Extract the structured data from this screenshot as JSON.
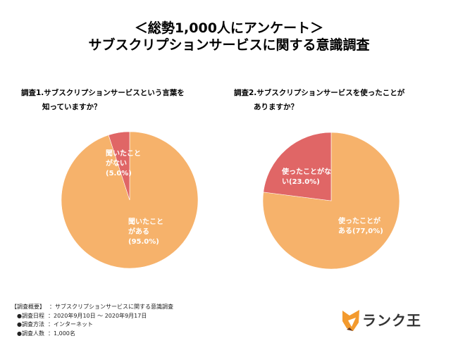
{
  "title": {
    "line1": "＜総勢1,000人にアンケート＞",
    "line2": "サブスクリプションサービスに関する意識調査"
  },
  "chart_data": [
    {
      "type": "pie",
      "title_lines": [
        "調査1.サブスクリプションサービスという言葉を",
        "知っていますか？"
      ],
      "slices": [
        {
          "label_lines": [
            "聞いたこと",
            "がある",
            "(95.0%)"
          ],
          "value": 95.0,
          "color": "#F6B26B"
        },
        {
          "label_lines": [
            "聞いたこと",
            "がない",
            "(5.0%)"
          ],
          "value": 5.0,
          "color": "#E06666"
        }
      ]
    },
    {
      "type": "pie",
      "title_lines": [
        "調査2.サブスクリプションサービスを使ったことが",
        "ありますか？"
      ],
      "slices": [
        {
          "label_lines": [
            "使ったことが",
            "ある(77,0%)"
          ],
          "value": 77.0,
          "color": "#F6B26B"
        },
        {
          "label_lines": [
            "使ったことがな",
            "い(23.0%)"
          ],
          "value": 23.0,
          "color": "#E06666"
        }
      ]
    }
  ],
  "survey": {
    "heading_label": "【調査概要】",
    "heading_value": "：サブスクリプションサービスに関する意識調査",
    "items": [
      {
        "label": "●調査日程",
        "value": "：2020年9月10日 ～ 2020年9月17日"
      },
      {
        "label": "●調査方法",
        "value": "：インターネット"
      },
      {
        "label": "●調査人数",
        "value": "：1,000名"
      }
    ]
  },
  "logo": {
    "text": "ランク王",
    "icon": "fox-icon",
    "accent_color": "#F39A2E"
  }
}
